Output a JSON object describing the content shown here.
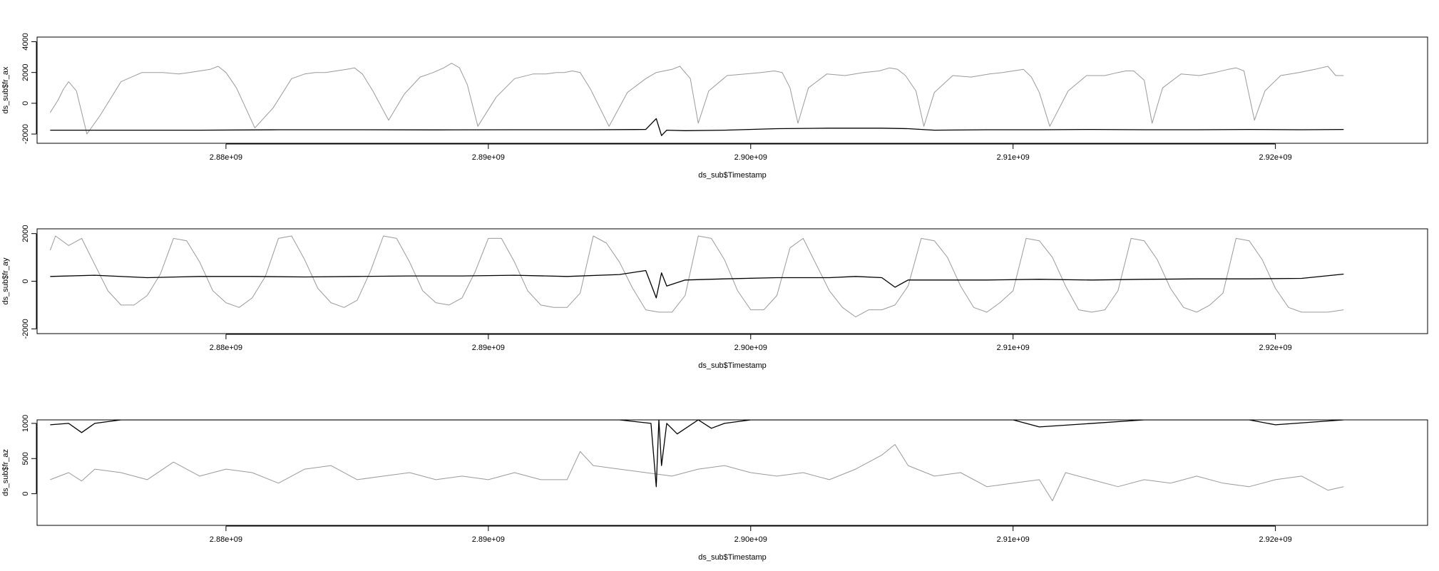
{
  "x_axis": {
    "label": "ds_sub$Timestamp",
    "ticks": [
      "2.88e+09",
      "2.89e+09",
      "2.90e+09",
      "2.91e+09",
      "2.92e+09"
    ]
  },
  "chart_data": [
    {
      "type": "line",
      "ylabel": "ds_sub$fr_ax",
      "xlabel": "ds_sub$Timestamp",
      "xlim": [
        2872800000.0,
        2925800000.0
      ],
      "ylim": [
        -2600,
        4300
      ],
      "y_ticks": [
        -2000,
        0,
        2000,
        4000
      ],
      "y_tick_labels": [
        "-2000",
        "0",
        "2000",
        "4000"
      ],
      "x_ticks": [
        2880000000.0,
        2890000000.0,
        2900000000.0,
        2910000000.0,
        2920000000.0
      ],
      "x_tick_labels": [
        "2.88e+09",
        "2.89e+09",
        "2.90e+09",
        "2.91e+09",
        "2.92e+09"
      ],
      "grid": false,
      "series": [
        {
          "color": "#9a9a9a",
          "x": [
            2873300000.0,
            2873600000.0,
            2873800000.0,
            2874000000.0,
            2874300000.0,
            2874700000.0,
            2875200000.0,
            2876000000.0,
            2876800000.0,
            2877600000.0,
            2878200000.0,
            2878600000.0,
            2879000000.0,
            2879400000.0,
            2879700000.0,
            2880000000.0,
            2880400000.0,
            2881100000.0,
            2881800000.0,
            2882500000.0,
            2883000000.0,
            2883400000.0,
            2883800000.0,
            2884200000.0,
            2884600000.0,
            2884900000.0,
            2885200000.0,
            2885600000.0,
            2886200000.0,
            2886800000.0,
            2887400000.0,
            2887900000.0,
            2888300000.0,
            2888600000.0,
            2888900000.0,
            2889200000.0,
            2889600000.0,
            2890300000.0,
            2891000000.0,
            2891700000.0,
            2892200000.0,
            2892600000.0,
            2892900000.0,
            2893200000.0,
            2893500000.0,
            2893900000.0,
            2894600000.0,
            2895300000.0,
            2896000000.0,
            2896400000.0,
            2896700000.0,
            2897000000.0,
            2897300000.0,
            2897700000.0,
            2898000000.0,
            2898400000.0,
            2899100000.0,
            2899800000.0,
            2900400000.0,
            2900900000.0,
            2901200000.0,
            2901500000.0,
            2901800000.0,
            2902200000.0,
            2902900000.0,
            2903600000.0,
            2904300000.0,
            2904900000.0,
            2905300000.0,
            2905600000.0,
            2905900000.0,
            2906300000.0,
            2906600000.0,
            2907000000.0,
            2907700000.0,
            2908400000.0,
            2909100000.0,
            2909600000.0,
            2910000000.0,
            2910400000.0,
            2910700000.0,
            2911000000.0,
            2911400000.0,
            2912100000.0,
            2912800000.0,
            2913500000.0,
            2914000000.0,
            2914300000.0,
            2914600000.0,
            2915000000.0,
            2915300000.0,
            2915700000.0,
            2916400000.0,
            2917100000.0,
            2917700000.0,
            2918200000.0,
            2918500000.0,
            2918800000.0,
            2919200000.0,
            2919600000.0,
            2920200000.0,
            2920900000.0,
            2921500000.0,
            2922000000.0,
            2922300000.0,
            2922600000.0
          ],
          "y": [
            -600,
            200,
            900,
            1400,
            800,
            -2000,
            -800,
            1400,
            2000,
            2000,
            1900,
            2000,
            2100,
            2200,
            2400,
            2000,
            1000,
            -1600,
            -300,
            1600,
            1900,
            2000,
            2000,
            2100,
            2200,
            2300,
            1900,
            800,
            -1100,
            600,
            1700,
            2000,
            2300,
            2600,
            2300,
            1200,
            -1500,
            400,
            1600,
            1900,
            1900,
            2000,
            2000,
            2100,
            2000,
            900,
            -1500,
            700,
            1600,
            2000,
            2100,
            2200,
            2400,
            1600,
            -1300,
            800,
            1800,
            1900,
            2000,
            2100,
            2000,
            1000,
            -1300,
            1000,
            1900,
            1800,
            2000,
            2100,
            2300,
            2200,
            1800,
            800,
            -1500,
            700,
            1800,
            1700,
            1900,
            2000,
            2100,
            2200,
            1700,
            700,
            -1500,
            800,
            1800,
            1800,
            2000,
            2100,
            2100,
            1500,
            -1300,
            1000,
            1900,
            1800,
            2000,
            2200,
            2300,
            2100,
            -1100,
            800,
            1800,
            2000,
            2200,
            2400,
            1800,
            1800
          ]
        },
        {
          "color": "#000000",
          "x": [
            2873300000.0,
            2876000000.0,
            2879000000.0,
            2882000000.0,
            2885000000.0,
            2888000000.0,
            2891000000.0,
            2894000000.0,
            2896000000.0,
            2896400000.0,
            2896600000.0,
            2896800000.0,
            2897500000.0,
            2899000000.0,
            2901000000.0,
            2903000000.0,
            2905000000.0,
            2906000000.0,
            2907000000.0,
            2909000000.0,
            2911000000.0,
            2913000000.0,
            2915000000.0,
            2917000000.0,
            2919000000.0,
            2921000000.0,
            2922600000.0
          ],
          "y": [
            -1750,
            -1750,
            -1750,
            -1720,
            -1720,
            -1730,
            -1720,
            -1720,
            -1700,
            -1000,
            -2100,
            -1750,
            -1780,
            -1750,
            -1650,
            -1620,
            -1620,
            -1650,
            -1750,
            -1720,
            -1720,
            -1700,
            -1720,
            -1720,
            -1700,
            -1720,
            -1700
          ]
        }
      ]
    },
    {
      "type": "line",
      "ylabel": "ds_sub$fr_ay",
      "xlabel": "ds_sub$Timestamp",
      "xlim": [
        2872800000.0,
        2925800000.0
      ],
      "ylim": [
        -2200,
        2200
      ],
      "y_ticks": [
        -2000,
        0,
        2000
      ],
      "y_tick_labels": [
        "-2000",
        "0",
        "2000"
      ],
      "x_ticks": [
        2880000000.0,
        2890000000.0,
        2900000000.0,
        2910000000.0,
        2920000000.0
      ],
      "x_tick_labels": [
        "2.88e+09",
        "2.89e+09",
        "2.90e+09",
        "2.91e+09",
        "2.92e+09"
      ],
      "grid": false,
      "series": [
        {
          "color": "#9a9a9a",
          "x": [
            2873300000.0,
            2873500000.0,
            2874000000.0,
            2874500000.0,
            2875000000.0,
            2875500000.0,
            2876000000.0,
            2876500000.0,
            2877000000.0,
            2877500000.0,
            2878000000.0,
            2878500000.0,
            2879000000.0,
            2879500000.0,
            2880000000.0,
            2880500000.0,
            2881000000.0,
            2881500000.0,
            2882000000.0,
            2882500000.0,
            2883000000.0,
            2883500000.0,
            2884000000.0,
            2884500000.0,
            2885000000.0,
            2885500000.0,
            2886000000.0,
            2886500000.0,
            2887000000.0,
            2887500000.0,
            2888000000.0,
            2888500000.0,
            2889000000.0,
            2889500000.0,
            2890000000.0,
            2890500000.0,
            2891000000.0,
            2891500000.0,
            2892000000.0,
            2892500000.0,
            2893000000.0,
            2893500000.0,
            2894000000.0,
            2894500000.0,
            2895000000.0,
            2895500000.0,
            2896000000.0,
            2896500000.0,
            2897000000.0,
            2897500000.0,
            2898000000.0,
            2898500000.0,
            2899000000.0,
            2899500000.0,
            2900000000.0,
            2900500000.0,
            2901000000.0,
            2901500000.0,
            2902000000.0,
            2902500000.0,
            2903000000.0,
            2903500000.0,
            2904000000.0,
            2904500000.0,
            2905000000.0,
            2905500000.0,
            2906000000.0,
            2906500000.0,
            2907000000.0,
            2907500000.0,
            2908000000.0,
            2908500000.0,
            2909000000.0,
            2909500000.0,
            2910000000.0,
            2910500000.0,
            2911000000.0,
            2911500000.0,
            2912000000.0,
            2912500000.0,
            2913000000.0,
            2913500000.0,
            2914000000.0,
            2914500000.0,
            2915000000.0,
            2915500000.0,
            2916000000.0,
            2916500000.0,
            2917000000.0,
            2917500000.0,
            2918000000.0,
            2918500000.0,
            2919000000.0,
            2919500000.0,
            2920000000.0,
            2920500000.0,
            2921000000.0,
            2921500000.0,
            2922000000.0,
            2922600000.0
          ],
          "y": [
            1300,
            1900,
            1500,
            1800,
            700,
            -400,
            -1000,
            -1000,
            -600,
            300,
            1800,
            1700,
            800,
            -400,
            -900,
            -1100,
            -700,
            200,
            1800,
            1900,
            900,
            -300,
            -900,
            -1100,
            -800,
            400,
            1900,
            1800,
            800,
            -400,
            -900,
            -1000,
            -700,
            400,
            1800,
            1800,
            800,
            -400,
            -1000,
            -1100,
            -1100,
            -500,
            1900,
            1600,
            800,
            -300,
            -1200,
            -1300,
            -1300,
            -600,
            1900,
            1800,
            900,
            -400,
            -1200,
            -1200,
            -600,
            1400,
            1800,
            700,
            -400,
            -1100,
            -1500,
            -1200,
            -1200,
            -1000,
            -200,
            1800,
            1700,
            1000,
            -200,
            -1100,
            -1300,
            -900,
            -400,
            1800,
            1700,
            1000,
            -200,
            -1200,
            -1300,
            -1200,
            -400,
            1800,
            1700,
            900,
            -300,
            -1100,
            -1300,
            -1000,
            -500,
            1800,
            1700,
            900,
            -300,
            -1100,
            -1300,
            -1300,
            -1300,
            -1200
          ]
        },
        {
          "color": "#000000",
          "x": [
            2873300000.0,
            2875000000.0,
            2877000000.0,
            2879000000.0,
            2881000000.0,
            2883000000.0,
            2885000000.0,
            2887000000.0,
            2889000000.0,
            2891000000.0,
            2893000000.0,
            2895000000.0,
            2896000000.0,
            2896400000.0,
            2896600000.0,
            2896800000.0,
            2897500000.0,
            2899000000.0,
            2901000000.0,
            2903000000.0,
            2904000000.0,
            2905000000.0,
            2905500000.0,
            2906000000.0,
            2907000000.0,
            2909000000.0,
            2911000000.0,
            2913000000.0,
            2915000000.0,
            2917000000.0,
            2919000000.0,
            2921000000.0,
            2922600000.0
          ],
          "y": [
            200,
            250,
            150,
            200,
            200,
            180,
            200,
            220,
            220,
            250,
            200,
            280,
            450,
            -700,
            350,
            -200,
            50,
            100,
            150,
            150,
            200,
            150,
            -250,
            50,
            50,
            50,
            80,
            50,
            80,
            100,
            100,
            120,
            300
          ]
        }
      ]
    },
    {
      "type": "line",
      "ylabel": "ds_sub$fr_az",
      "xlabel": "ds_sub$Timestamp",
      "xlim": [
        2872800000.0,
        2925800000.0
      ],
      "ylim": [
        -450,
        1050
      ],
      "y_ticks": [
        0,
        500,
        1000
      ],
      "y_tick_labels": [
        "0",
        "500",
        "1000"
      ],
      "x_ticks": [
        2880000000.0,
        2890000000.0,
        2900000000.0,
        2910000000.0,
        2920000000.0
      ],
      "x_tick_labels": [
        "2.88e+09",
        "2.89e+09",
        "2.90e+09",
        "2.91e+09",
        "2.92e+09"
      ],
      "grid": false,
      "series": [
        {
          "color": "#9a9a9a",
          "x": [
            2873300000.0,
            2874000000.0,
            2874500000.0,
            2875000000.0,
            2876000000.0,
            2877000000.0,
            2878000000.0,
            2879000000.0,
            2880000000.0,
            2881000000.0,
            2882000000.0,
            2883000000.0,
            2884000000.0,
            2885000000.0,
            2886000000.0,
            2887000000.0,
            2888000000.0,
            2889000000.0,
            2890000000.0,
            2891000000.0,
            2892000000.0,
            2893000000.0,
            2893500000.0,
            2894000000.0,
            2895000000.0,
            2896000000.0,
            2897000000.0,
            2898000000.0,
            2899000000.0,
            2900000000.0,
            2901000000.0,
            2902000000.0,
            2903000000.0,
            2904000000.0,
            2905000000.0,
            2905500000.0,
            2906000000.0,
            2907000000.0,
            2908000000.0,
            2909000000.0,
            2910000000.0,
            2911000000.0,
            2911500000.0,
            2912000000.0,
            2913000000.0,
            2914000000.0,
            2915000000.0,
            2916000000.0,
            2917000000.0,
            2918000000.0,
            2919000000.0,
            2920000000.0,
            2921000000.0,
            2922000000.0,
            2922600000.0
          ],
          "y": [
            200,
            300,
            180,
            350,
            300,
            200,
            450,
            250,
            350,
            300,
            150,
            350,
            400,
            200,
            250,
            300,
            200,
            250,
            200,
            300,
            200,
            200,
            600,
            400,
            350,
            300,
            250,
            350,
            400,
            300,
            250,
            300,
            200,
            350,
            550,
            700,
            400,
            250,
            300,
            100,
            150,
            200,
            -100,
            300,
            200,
            100,
            200,
            150,
            250,
            150,
            100,
            200,
            250,
            50,
            100
          ]
        },
        {
          "color": "#000000",
          "x": [
            2873300000.0,
            2874000000.0,
            2874500000.0,
            2875000000.0,
            2876000000.0,
            2880000000.0,
            2885000000.0,
            2890000000.0,
            2895000000.0,
            2896200000.0,
            2896400000.0,
            2896500000.0,
            2896600000.0,
            2896800000.0,
            2897200000.0,
            2898000000.0,
            2898500000.0,
            2899000000.0,
            2900000000.0,
            2905000000.0,
            2910000000.0,
            2911000000.0,
            2915000000.0,
            2919000000.0,
            2920000000.0,
            2922600000.0
          ],
          "y": [
            980,
            1000,
            870,
            1000,
            1050,
            1050,
            1050,
            1050,
            1050,
            1000,
            100,
            1050,
            400,
            1000,
            850,
            1050,
            930,
            1000,
            1050,
            1050,
            1050,
            950,
            1050,
            1050,
            980,
            1050
          ]
        }
      ]
    }
  ]
}
